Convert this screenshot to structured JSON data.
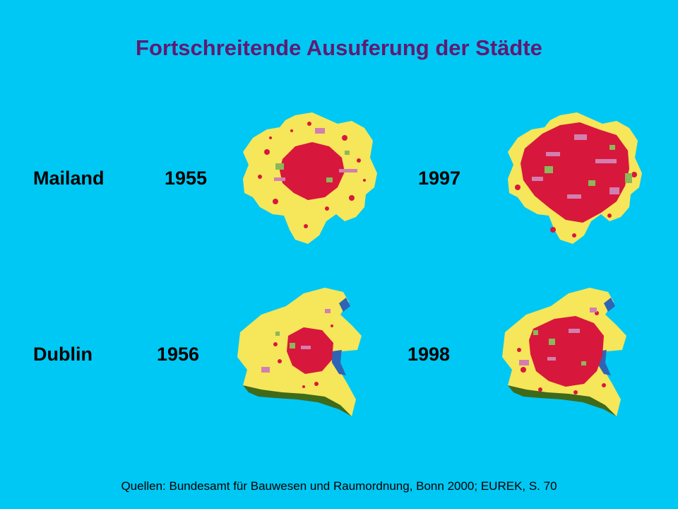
{
  "title": "Fortschreitende Ausuferung der Städte",
  "rows": [
    {
      "city": "Mailand",
      "year_early": "1955",
      "year_late": "1997"
    },
    {
      "city": "Dublin",
      "year_early": "1956",
      "year_late": "1998"
    }
  ],
  "source": "Quellen: Bundesamt für Bauwesen und Raumordnung, Bonn 2000; EUREK, S. 70",
  "colors": {
    "background": "#00c8f4",
    "title": "#5f1b73",
    "land": "#f6e65a",
    "built": "#d8173c",
    "infrastructure": "#d27fb0",
    "green": "#8ab85a",
    "forest": "#3f6a1a",
    "water": "#2f64b4"
  },
  "legend_semantics": {
    "map_fill": "land",
    "urban_area": "built",
    "roads_and_industry": "infrastructure",
    "parks": "green",
    "woodland": "forest",
    "sea_and_rivers": "water"
  }
}
